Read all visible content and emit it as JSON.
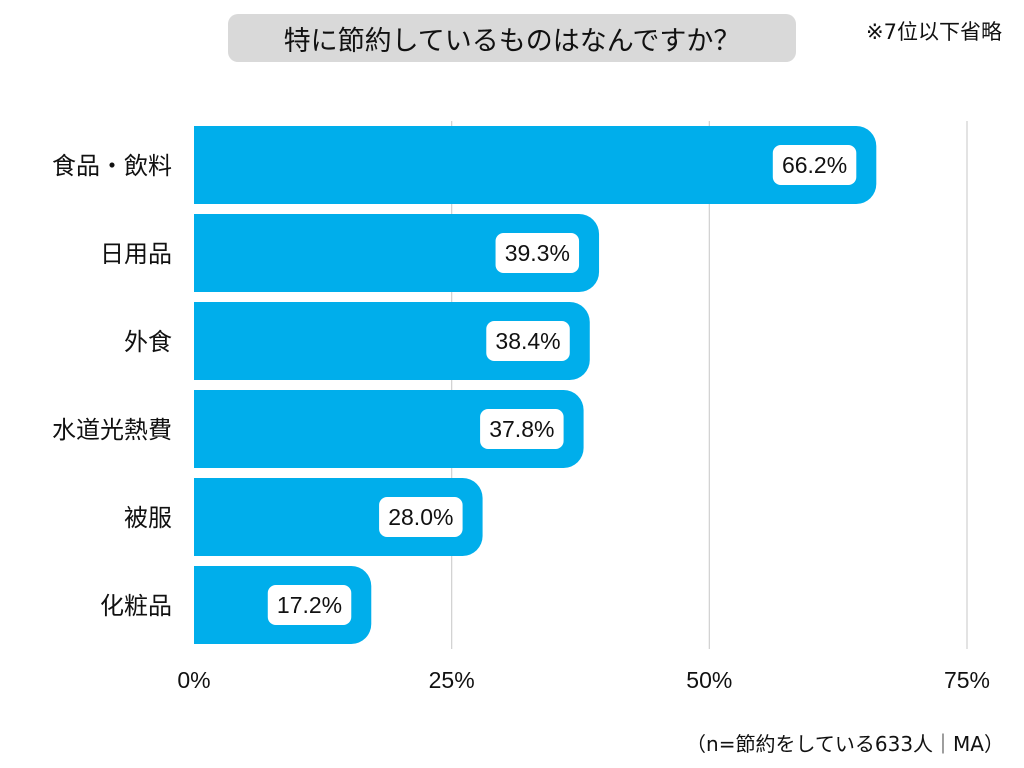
{
  "title": "特に節約しているものはなんですか？",
  "note": "※7位以下省略",
  "source": "（n=節約をしている633人｜MA）",
  "colors": {
    "bar": "#00aeeb",
    "grid": "#d0d0d0",
    "title_bg": "#d9d9d9",
    "label_bg": "#ffffff"
  },
  "chart_data": {
    "type": "bar",
    "orientation": "horizontal",
    "title": "特に節約しているものはなんですか？",
    "categories": [
      "食品・飲料",
      "日用品",
      "外食",
      "水道光熱費",
      "被服",
      "化粧品"
    ],
    "values": [
      66.2,
      39.3,
      38.4,
      37.8,
      28.0,
      17.2
    ],
    "value_labels": [
      "66.2%",
      "39.3%",
      "38.4%",
      "37.8%",
      "28.0%",
      "17.2%"
    ],
    "xlim": [
      0,
      75
    ],
    "xticks": [
      0,
      25,
      50,
      75
    ],
    "xtick_labels": [
      "0%",
      "25%",
      "50%",
      "75%"
    ],
    "xlabel": "",
    "ylabel": "",
    "grid": true
  }
}
